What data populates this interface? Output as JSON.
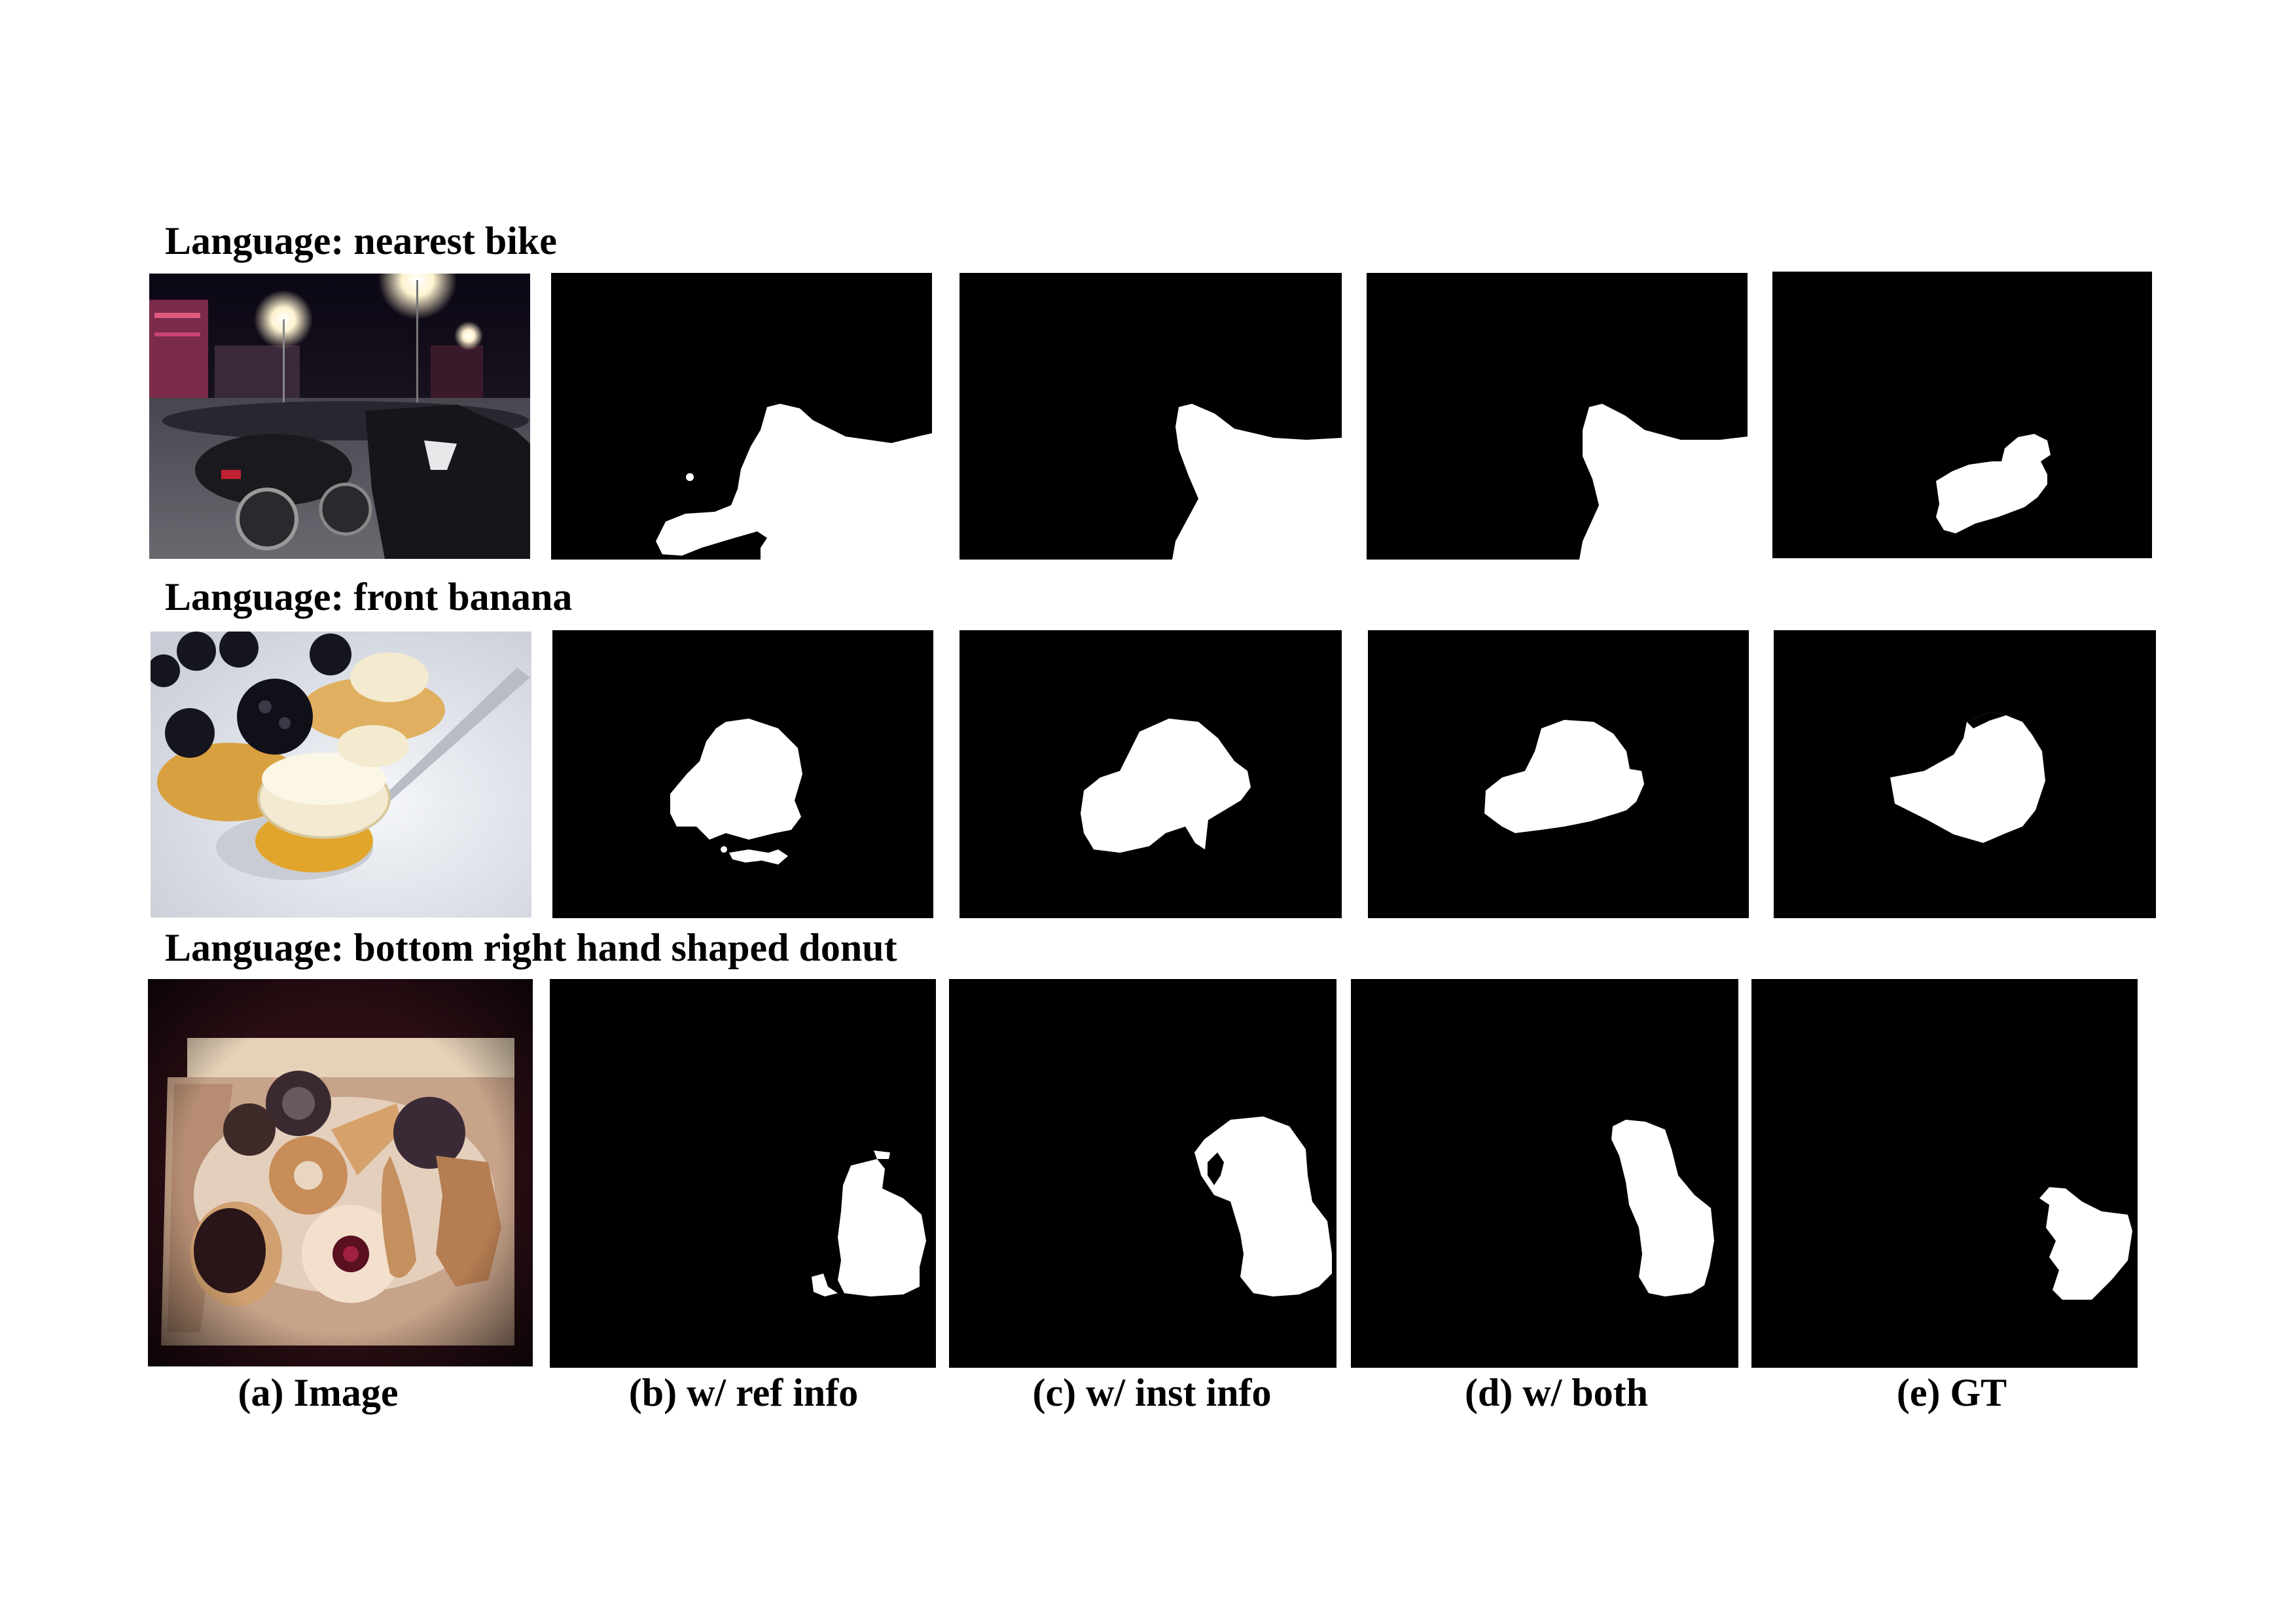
{
  "rows": [
    {
      "language": "Language: nearest bike",
      "photo_desc_icon": "night-parking-lot-motorcycles-photo"
    },
    {
      "language": "Language: front banana",
      "photo_desc_icon": "blackberry-banana-dessert-photo"
    },
    {
      "language": "Language: bottom right hand shaped donut",
      "photo_desc_icon": "donut-box-photo"
    }
  ],
  "captions": {
    "a": "(a) Image",
    "b": "(b) w/ ref info",
    "c": "(c) w/ inst info",
    "d": "(d) w/ both",
    "e": "(e) GT"
  },
  "colors": {
    "mask_fg": "#ffffff",
    "mask_bg": "#000000",
    "text": "#000000"
  }
}
